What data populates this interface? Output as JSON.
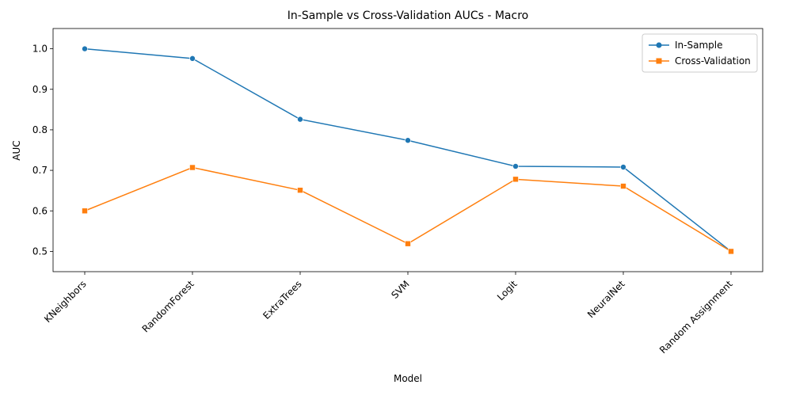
{
  "chart_data": {
    "type": "line",
    "title": "In-Sample vs Cross-Validation AUCs - Macro",
    "xlabel": "Model",
    "ylabel": "AUC",
    "categories": [
      "KNeighbors",
      "RandomForest",
      "ExtraTrees",
      "SVM",
      "Logit",
      "NeuralNet",
      "Random Assignment"
    ],
    "series": [
      {
        "name": "In-Sample",
        "values": [
          1.0,
          0.976,
          0.826,
          0.774,
          0.71,
          0.708,
          0.5
        ],
        "color": "#1f77b4",
        "marker": "circle"
      },
      {
        "name": "Cross-Validation",
        "values": [
          0.6,
          0.707,
          0.651,
          0.519,
          0.678,
          0.661,
          0.5
        ],
        "color": "#ff7f0e",
        "marker": "square"
      }
    ],
    "ylim": [
      0.45,
      1.05
    ],
    "yticks": [
      0.5,
      0.6,
      0.7,
      0.8,
      0.9,
      1.0
    ],
    "ytick_labels": [
      "0.5",
      "0.6",
      "0.7",
      "0.8",
      "0.9",
      "1.0"
    ],
    "grid": false,
    "legend_position": "top-right"
  }
}
